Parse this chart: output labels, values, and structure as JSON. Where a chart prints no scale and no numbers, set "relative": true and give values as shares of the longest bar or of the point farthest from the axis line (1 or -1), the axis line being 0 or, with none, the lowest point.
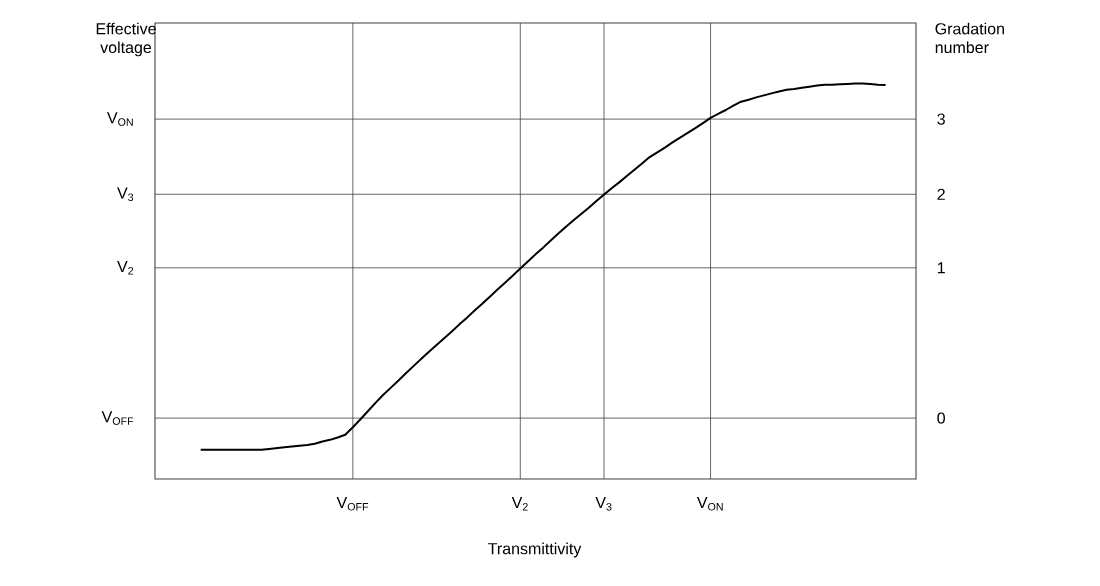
{
  "chart_data": {
    "type": "line",
    "relative": true,
    "xlabel": "Transmittivity",
    "ylabel": "Effective voltage",
    "y2label": "Gradation number",
    "categories": [
      null,
      null,
      null,
      null,
      null,
      null,
      null,
      null,
      null,
      null,
      null,
      null,
      null,
      null,
      null,
      null,
      null,
      null,
      null,
      null,
      null,
      null,
      null,
      null,
      null,
      null,
      "V$_{OFF}$",
      null,
      null,
      null,
      null,
      null,
      null,
      null,
      null,
      null,
      null,
      null,
      null,
      null,
      null,
      null,
      null,
      null,
      null,
      null,
      null,
      null,
      "V$_{2}$",
      null,
      null,
      null,
      null,
      null,
      null,
      null,
      null,
      null,
      null,
      "V$_{3}$",
      null,
      null,
      null,
      null,
      null,
      null,
      null,
      null,
      null,
      null,
      null,
      null,
      null,
      "V$_{ON}$",
      null,
      null,
      null,
      null,
      null,
      null,
      null,
      null,
      null,
      null,
      null,
      null,
      null,
      null,
      null,
      null,
      null,
      null,
      null,
      null,
      null,
      null,
      null,
      null,
      null,
      null,
      null
    ],
    "grid": "x",
    "ref_lines": [
      {
        "axis": "y",
        "value": 0.154,
        "label": "V$_{OFF}$"
      },
      {
        "axis": "y",
        "value": 0.534,
        "label": "V$_{2}$"
      },
      {
        "axis": "y",
        "value": 0.72,
        "label": "V$_{3}$"
      },
      {
        "axis": "y",
        "value": 0.91,
        "label": "V$_{ON}$"
      }
    ],
    "annotations": [
      "0",
      "1",
      "2",
      "3"
    ],
    "series": [
      {
        "color": "#000000",
        "values": [
          null,
          null,
          null,
          null,
          null,
          null,
          0.074,
          0.074,
          0.074,
          0.074,
          0.074,
          0.074,
          0.074,
          0.074,
          0.074,
          0.076,
          0.078,
          0.08,
          0.082,
          0.084,
          0.086,
          0.089,
          0.095,
          0.099,
          0.105,
          0.112,
          0.131,
          0.151,
          0.172,
          0.193,
          0.213,
          0.231,
          0.249,
          0.268,
          0.286,
          0.304,
          0.322,
          0.339,
          0.356,
          0.373,
          0.391,
          0.408,
          0.426,
          0.443,
          0.461,
          0.479,
          0.496,
          0.514,
          0.532,
          0.55,
          0.568,
          0.585,
          0.603,
          0.621,
          0.638,
          0.654,
          0.67,
          0.686,
          0.703,
          0.719,
          0.735,
          0.75,
          0.766,
          0.782,
          0.798,
          0.814,
          0.826,
          0.838,
          0.851,
          0.863,
          0.875,
          0.887,
          0.9,
          0.913,
          0.923,
          0.933,
          0.944,
          0.954,
          0.959,
          0.965,
          0.97,
          0.975,
          0.98,
          0.984,
          0.986,
          0.989,
          0.992,
          0.995,
          0.997,
          0.997,
          0.998,
          0.999,
          1,
          1,
          0.999,
          0.997,
          0.996,
          null,
          null,
          null,
          null
        ]
      }
    ]
  }
}
